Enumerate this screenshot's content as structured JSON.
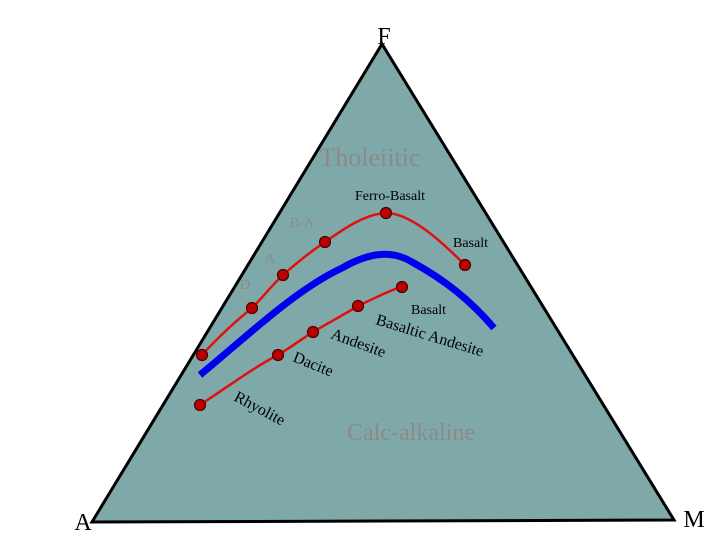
{
  "vertex_labels": {
    "top": "F",
    "left": "A",
    "right": "M"
  },
  "fields": {
    "upper": "Tholeiitic",
    "lower": "Calc-alkaline"
  },
  "tholeiitic_labels": {
    "ferro_basalt": "Ferro-Basalt",
    "basaltic_andesite": "B-A",
    "andesite": "A",
    "dacite": "D",
    "basalt": "Basalt"
  },
  "calc_alkaline_labels": {
    "basalt": "Basalt",
    "basaltic_andesite": "Basaltic Andesite",
    "andesite": "Andesite",
    "dacite": "Dacite",
    "rhyolite": "Rhyolite"
  },
  "colors": {
    "triangle_fill": "#7fa9a9",
    "triangle_edge": "#000000",
    "trend_line": "#e01010",
    "marker_fill": "#bb0000",
    "marker_edge": "#4a0000",
    "dividing_line": "#0000ee",
    "field_label": "#8a8a8a",
    "faded_label": "#8a8a8a"
  }
}
